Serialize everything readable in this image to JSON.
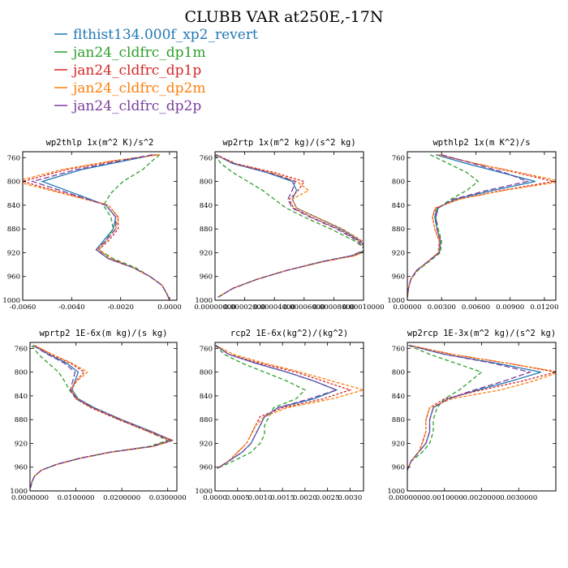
{
  "figure": {
    "title": "CLUBB VAR at250E,-17N"
  },
  "legend": [
    {
      "name": "flthist134.000f_xp2_revert",
      "color": "#1f77b4"
    },
    {
      "name": "jan24_cldfrc_dp1m",
      "color": "#2ca02c"
    },
    {
      "name": "jan24_cldfrc_dp1p",
      "color": "#d62728"
    },
    {
      "name": "jan24_cldfrc_dp2m",
      "color": "#ff7f0e"
    },
    {
      "name": "jan24_cldfrc_dp2p",
      "color": "#7b3f9e"
    }
  ],
  "chart_data": [
    {
      "type": "line",
      "title": "wp2thlp  1x(m^2 K)/s^2",
      "xlim": [
        -0.006,
        0.0003
      ],
      "ylim": [
        1000,
        750
      ],
      "xticks": [
        -0.006,
        -0.004,
        -0.002,
        0.0
      ],
      "xtick_labels": [
        "-0.0060",
        "-0.0040",
        "-0.0020",
        "0.0000"
      ],
      "yticks": [
        760,
        800,
        840,
        880,
        920,
        960,
        1000
      ],
      "y": [
        755,
        765,
        780,
        800,
        820,
        840,
        860,
        880,
        900,
        915,
        930,
        945,
        960,
        975,
        990,
        1000
      ],
      "series": [
        {
          "name": "flthist134.000f_xp2_revert",
          "x": [
            -0.0006,
            -0.0018,
            -0.0036,
            -0.0052,
            -0.0039,
            -0.0026,
            -0.0022,
            -0.0023,
            -0.0027,
            -0.003,
            -0.0025,
            -0.0015,
            -0.0008,
            -0.0003,
            -0.0001,
            0.0
          ]
        },
        {
          "name": "jan24_cldfrc_dp1m",
          "x": [
            -0.0004,
            -0.0007,
            -0.0011,
            -0.0019,
            -0.0024,
            -0.0027,
            -0.0024,
            -0.0023,
            -0.0026,
            -0.0029,
            -0.0023,
            -0.0014,
            -0.0008,
            -0.0003,
            -0.0001,
            0.0
          ]
        },
        {
          "name": "jan24_cldfrc_dp1p",
          "x": [
            -0.0005,
            -0.0022,
            -0.0042,
            -0.006,
            -0.0043,
            -0.0025,
            -0.0021,
            -0.0021,
            -0.0025,
            -0.0029,
            -0.0024,
            -0.0015,
            -0.0008,
            -0.0003,
            -0.0001,
            0.0
          ]
        },
        {
          "name": "jan24_cldfrc_dp2m",
          "x": [
            -0.0004,
            -0.0023,
            -0.0044,
            -0.0063,
            -0.0044,
            -0.0025,
            -0.0021,
            -0.0022,
            -0.0026,
            -0.0029,
            -0.0024,
            -0.0015,
            -0.0008,
            -0.0003,
            -0.0001,
            0.0
          ]
        },
        {
          "name": "jan24_cldfrc_dp2p",
          "x": [
            -0.0007,
            -0.002,
            -0.0038,
            -0.0056,
            -0.0041,
            -0.0026,
            -0.0022,
            -0.0022,
            -0.0026,
            -0.003,
            -0.0025,
            -0.0015,
            -0.0008,
            -0.0003,
            -0.0001,
            0.0
          ]
        }
      ]
    },
    {
      "type": "line",
      "title": "wp2rtp  1x(m^2 kg)/(s^2 kg)",
      "xlim": [
        0.0,
        0.0001
      ],
      "ylim": [
        1000,
        750
      ],
      "xticks": [
        0.0,
        2e-05,
        4e-05,
        6e-05,
        8e-05,
        0.0001
      ],
      "xtick_labels": [
        "0.00000000",
        "0.00002000",
        "0.00004000",
        "0.00006000",
        "0.00008000",
        "0.00010000"
      ],
      "yticks": [
        760,
        800,
        840,
        880,
        920,
        960,
        1000
      ],
      "y": [
        755,
        770,
        785,
        800,
        815,
        830,
        845,
        860,
        880,
        900,
        915,
        925,
        935,
        950,
        965,
        980,
        995
      ],
      "series": [
        {
          "name": "flthist134.000f_xp2_revert",
          "x": [
            5e-07,
            1.2e-05,
            3.5e-05,
            5.2e-05,
            5.5e-05,
            5.2e-05,
            5.5e-05,
            6.8e-05,
            8.5e-05,
            9.8e-05,
            0.000102,
            9.2e-05,
            7.2e-05,
            4.8e-05,
            2.8e-05,
            1.2e-05,
            2e-06
          ]
        },
        {
          "name": "jan24_cldfrc_dp1m",
          "x": [
            0.0,
            4e-06,
            1.2e-05,
            2.2e-05,
            3.2e-05,
            4e-05,
            4.8e-05,
            6e-05,
            7.8e-05,
            9.4e-05,
            0.000102,
            9.3e-05,
            7.3e-05,
            4.8e-05,
            2.8e-05,
            1.2e-05,
            2e-06
          ]
        },
        {
          "name": "jan24_cldfrc_dp1p",
          "x": [
            8e-07,
            1.4e-05,
            4e-05,
            6e-05,
            5.6e-05,
            5e-05,
            5.3e-05,
            6.5e-05,
            8.3e-05,
            9.7e-05,
            0.000103,
            9.4e-05,
            7.3e-05,
            4.8e-05,
            2.8e-05,
            1.2e-05,
            2e-06
          ]
        },
        {
          "name": "jan24_cldfrc_dp2m",
          "x": [
            3e-07,
            1.3e-05,
            3.8e-05,
            5.5e-05,
            6.3e-05,
            5.2e-05,
            5.5e-05,
            6.8e-05,
            8.6e-05,
            9.9e-05,
            0.000104,
            9.4e-05,
            7.3e-05,
            4.8e-05,
            2.8e-05,
            1.2e-05,
            2e-06
          ]
        },
        {
          "name": "jan24_cldfrc_dp2p",
          "x": [
            6e-07,
            1.3e-05,
            3.6e-05,
            5.4e-05,
            5.2e-05,
            4.9e-05,
            5.2e-05,
            6.4e-05,
            8.2e-05,
            9.6e-05,
            0.000101,
            9.2e-05,
            7.2e-05,
            4.8e-05,
            2.8e-05,
            1.2e-05,
            2e-06
          ]
        }
      ]
    },
    {
      "type": "line",
      "title": "wpthlp2  1x(m K^2)/s",
      "xlim": [
        0.0,
        0.013
      ],
      "ylim": [
        1000,
        750
      ],
      "xticks": [
        0.0,
        0.003,
        0.006,
        0.009,
        0.012
      ],
      "xtick_labels": [
        "0.00000",
        "0.00300",
        "0.00600",
        "0.00900",
        "0.01200"
      ],
      "yticks": [
        760,
        800,
        840,
        880,
        920,
        960,
        1000
      ],
      "y": [
        755,
        770,
        785,
        800,
        815,
        830,
        845,
        860,
        880,
        900,
        920,
        935,
        950,
        965,
        980,
        995
      ],
      "series": [
        {
          "name": "flthist134.000f_xp2_revert",
          "x": [
            0.0025,
            0.0052,
            0.0082,
            0.0112,
            0.0075,
            0.0042,
            0.0026,
            0.0024,
            0.0026,
            0.0029,
            0.0028,
            0.0018,
            0.0008,
            0.0003,
            0.0001,
            0.0
          ]
        },
        {
          "name": "jan24_cldfrc_dp1m",
          "x": [
            0.002,
            0.0036,
            0.0052,
            0.0062,
            0.0052,
            0.0038,
            0.0027,
            0.0025,
            0.0027,
            0.003,
            0.0029,
            0.0019,
            0.0009,
            0.0003,
            0.0001,
            0.0
          ]
        },
        {
          "name": "jan24_cldfrc_dp1p",
          "x": [
            0.0028,
            0.006,
            0.0095,
            0.0128,
            0.0083,
            0.0045,
            0.0025,
            0.0022,
            0.0024,
            0.0028,
            0.0027,
            0.0018,
            0.0008,
            0.0003,
            0.0001,
            0.0
          ]
        },
        {
          "name": "jan24_cldfrc_dp2m",
          "x": [
            0.0027,
            0.006,
            0.0098,
            0.0135,
            0.0085,
            0.0045,
            0.0024,
            0.0022,
            0.0024,
            0.0028,
            0.0027,
            0.0018,
            0.0008,
            0.0003,
            0.0001,
            0.0
          ]
        },
        {
          "name": "jan24_cldfrc_dp2p",
          "x": [
            0.003,
            0.0058,
            0.0085,
            0.0105,
            0.007,
            0.004,
            0.0027,
            0.0025,
            0.0026,
            0.0029,
            0.0028,
            0.0018,
            0.0008,
            0.0003,
            0.0001,
            0.0
          ]
        }
      ]
    },
    {
      "type": "line",
      "title": "wprtp2  1E-6x(m kg)/(s kg)",
      "xlim": [
        0.0,
        0.032
      ],
      "ylim": [
        1000,
        750
      ],
      "xticks": [
        0.0,
        0.01,
        0.02,
        0.03
      ],
      "xtick_labels": [
        "0.0000000",
        "0.0100000",
        "0.0200000",
        "0.0300000"
      ],
      "yticks": [
        760,
        800,
        840,
        880,
        920,
        960,
        1000
      ],
      "y": [
        755,
        770,
        785,
        800,
        815,
        830,
        845,
        860,
        880,
        900,
        915,
        925,
        935,
        945,
        955,
        965,
        975,
        985,
        995
      ],
      "series": [
        {
          "name": "flthist134.000f_xp2_revert",
          "x": [
            0.0008,
            0.004,
            0.008,
            0.0105,
            0.0098,
            0.0092,
            0.0105,
            0.014,
            0.02,
            0.0265,
            0.031,
            0.0268,
            0.0175,
            0.011,
            0.006,
            0.0025,
            0.001,
            0.0004,
            0.0001
          ]
        },
        {
          "name": "jan24_cldfrc_dp1m",
          "x": [
            0.0004,
            0.0018,
            0.004,
            0.0062,
            0.0075,
            0.0086,
            0.01,
            0.0135,
            0.0195,
            0.0258,
            0.03,
            0.026,
            0.0172,
            0.0108,
            0.0058,
            0.0025,
            0.001,
            0.0004,
            0.0001
          ]
        },
        {
          "name": "jan24_cldfrc_dp1p",
          "x": [
            0.001,
            0.0045,
            0.0088,
            0.0118,
            0.01,
            0.0088,
            0.01,
            0.0133,
            0.0193,
            0.0258,
            0.0305,
            0.0265,
            0.0173,
            0.0108,
            0.0059,
            0.0025,
            0.001,
            0.0004,
            0.0001
          ]
        },
        {
          "name": "jan24_cldfrc_dp2m",
          "x": [
            0.001,
            0.0048,
            0.0092,
            0.0125,
            0.0102,
            0.009,
            0.0103,
            0.0138,
            0.0198,
            0.0262,
            0.0312,
            0.027,
            0.0176,
            0.011,
            0.006,
            0.0025,
            0.001,
            0.0004,
            0.0001
          ]
        },
        {
          "name": "jan24_cldfrc_dp2p",
          "x": [
            0.0007,
            0.0038,
            0.0075,
            0.0098,
            0.0093,
            0.0088,
            0.0102,
            0.0138,
            0.0198,
            0.0263,
            0.0308,
            0.0266,
            0.0174,
            0.0109,
            0.0059,
            0.0025,
            0.001,
            0.0004,
            0.0001
          ]
        }
      ]
    },
    {
      "type": "line",
      "title": "rcp2  1E-6x(kg^2)/(kg^2)",
      "xlim": [
        0.0,
        0.0033
      ],
      "ylim": [
        1000,
        750
      ],
      "xticks": [
        0.0,
        0.0005,
        0.001,
        0.0015,
        0.002,
        0.0025,
        0.003
      ],
      "xtick_labels": [
        "0.0000",
        "0.0005",
        "0.0010",
        "0.0015",
        "0.0020",
        "0.0025",
        "0.0030"
      ],
      "yticks": [
        760,
        800,
        840,
        880,
        920,
        960,
        1000
      ],
      "y": [
        755,
        770,
        785,
        800,
        815,
        830,
        845,
        860,
        875,
        890,
        905,
        920,
        935,
        950,
        962
      ],
      "series": [
        {
          "name": "flthist134.000f_xp2_revert",
          "x": [
            2e-05,
            0.0003,
            0.0009,
            0.0016,
            0.0022,
            0.0027,
            0.0022,
            0.0014,
            0.0011,
            0.001,
            0.0009,
            0.0008,
            0.0006,
            0.0003,
            5e-05
          ]
        },
        {
          "name": "jan24_cldfrc_dp1m",
          "x": [
            1e-05,
            0.0002,
            0.0006,
            0.0011,
            0.0016,
            0.002,
            0.0018,
            0.0013,
            0.0012,
            0.0011,
            0.0011,
            0.001,
            0.0008,
            0.0004,
            5e-05
          ]
        },
        {
          "name": "jan24_cldfrc_dp1p",
          "x": [
            2e-05,
            0.0003,
            0.001,
            0.0018,
            0.0024,
            0.003,
            0.0024,
            0.0015,
            0.001,
            0.0009,
            0.0008,
            0.0007,
            0.0005,
            0.0003,
            5e-05
          ]
        },
        {
          "name": "jan24_cldfrc_dp2m",
          "x": [
            2e-05,
            0.0004,
            0.0011,
            0.0019,
            0.0026,
            0.0033,
            0.0026,
            0.0016,
            0.0011,
            0.0009,
            0.0008,
            0.0007,
            0.0005,
            0.0003,
            5e-05
          ]
        },
        {
          "name": "jan24_cldfrc_dp2p",
          "x": [
            2e-05,
            0.0003,
            0.0009,
            0.0016,
            0.0022,
            0.0027,
            0.0021,
            0.0014,
            0.0011,
            0.001,
            0.0009,
            0.0008,
            0.0006,
            0.0003,
            5e-05
          ]
        }
      ]
    },
    {
      "type": "line",
      "title": "wp2rcp  1E-3x(m^2 kg)/(s^2 kg)",
      "xlim": [
        0.0,
        0.004
      ],
      "ylim": [
        1000,
        750
      ],
      "xticks": [
        0.0,
        0.001,
        0.002,
        0.003
      ],
      "xtick_labels": [
        "0.0000000",
        "0.0010000",
        "0.0020000",
        "0.0030000"
      ],
      "yticks": [
        760,
        800,
        840,
        880,
        920,
        960,
        1000
      ],
      "y": [
        755,
        770,
        785,
        800,
        815,
        830,
        845,
        860,
        880,
        900,
        920,
        935,
        950,
        965
      ],
      "series": [
        {
          "name": "flthist134.000f_xp2_revert",
          "x": [
            5e-05,
            0.001,
            0.0024,
            0.0036,
            0.0028,
            0.0019,
            0.0011,
            0.0007,
            0.0006,
            0.0006,
            0.0005,
            0.0003,
            0.0001,
            0.0
          ]
        },
        {
          "name": "jan24_cldfrc_dp1m",
          "x": [
            3e-05,
            0.0006,
            0.0013,
            0.002,
            0.0017,
            0.0014,
            0.001,
            0.0008,
            0.0007,
            0.0007,
            0.0006,
            0.0004,
            0.0001,
            0.0
          ]
        },
        {
          "name": "jan24_cldfrc_dp1p",
          "x": [
            6e-05,
            0.0012,
            0.0027,
            0.004,
            0.0031,
            0.002,
            0.001,
            0.0006,
            0.0005,
            0.0005,
            0.0004,
            0.0003,
            0.0001,
            0.0
          ]
        },
        {
          "name": "jan24_cldfrc_dp2m",
          "x": [
            6e-05,
            0.0012,
            0.0027,
            0.0041,
            0.0034,
            0.0025,
            0.0012,
            0.0006,
            0.0005,
            0.0005,
            0.0004,
            0.0003,
            0.0001,
            0.0
          ]
        },
        {
          "name": "jan24_cldfrc_dp2p",
          "x": [
            5e-05,
            0.001,
            0.0023,
            0.0033,
            0.0026,
            0.0018,
            0.0011,
            0.0007,
            0.0006,
            0.0006,
            0.0005,
            0.0003,
            0.0001,
            0.0
          ]
        }
      ]
    }
  ]
}
